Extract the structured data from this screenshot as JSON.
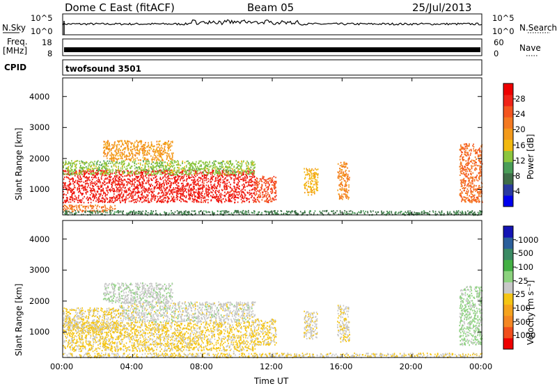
{
  "header": {
    "station": "Dome C East (fitACF)",
    "beam": "Beam 05",
    "date": "25/Jul/2013"
  },
  "strips": {
    "nsky": {
      "label": "N.Sky",
      "top_tick": "10^5",
      "bottom_tick": "10^0"
    },
    "nsearch": {
      "label": "N.Search",
      "top_tick": "10^5",
      "bottom_tick": "10^0"
    },
    "freq": {
      "label_line1": "Freq.",
      "label_line2": "[MHz]",
      "top_tick": "18",
      "bottom_tick": "8"
    },
    "nave": {
      "label": "Nave",
      "top_tick": "60",
      "bottom_tick": "0"
    },
    "cpid": {
      "label": "CPID",
      "value": "twofsound 3501"
    }
  },
  "colors": {
    "power_scale": [
      "#0000ee",
      "#2a3aa0",
      "#3f6e48",
      "#4a9d58",
      "#8cc63e",
      "#f2b90f",
      "#f39a1b",
      "#f47a22",
      "#f4551f",
      "#f02418",
      "#ee0000"
    ],
    "velocity_scale": [
      "#ee0000",
      "#f14f1c",
      "#f48723",
      "#f5a31e",
      "#f5c515",
      "#c8c8c8",
      "#8cd27e",
      "#44b044",
      "#3a8a63",
      "#2b5f9b",
      "#1414b4"
    ]
  },
  "chart_data": [
    {
      "type": "heatmap",
      "panel": "power",
      "ylabel": "Slant Range [km]",
      "xlabel": "",
      "xlim": [
        0,
        24
      ],
      "ylim": [
        180,
        4600
      ],
      "x_ticks": [
        "00:00",
        "04:00",
        "08:00",
        "12:00",
        "16:00",
        "20:00",
        "00:00"
      ],
      "y_ticks": [
        1000,
        2000,
        3000,
        4000
      ],
      "colorbar": {
        "label": "Power [dB]",
        "ticks": [
          4,
          8,
          12,
          16,
          20,
          24,
          28
        ],
        "range": [
          0,
          32
        ]
      },
      "regions": [
        {
          "t0": 0.0,
          "t1": 11.0,
          "r0": 600,
          "r1": 1650,
          "v": 28
        },
        {
          "t0": 0.0,
          "t1": 11.0,
          "r0": 1500,
          "r1": 1950,
          "v": 13
        },
        {
          "t0": 2.3,
          "t1": 6.3,
          "r0": 1950,
          "r1": 2600,
          "v": 19
        },
        {
          "t0": 0.0,
          "t1": 3.0,
          "r0": 300,
          "r1": 520,
          "v": 22
        },
        {
          "t0": 11.0,
          "t1": 12.2,
          "r0": 600,
          "r1": 1450,
          "v": 25
        },
        {
          "t0": 13.8,
          "t1": 14.6,
          "r0": 800,
          "r1": 1700,
          "v": 17
        },
        {
          "t0": 15.7,
          "t1": 16.4,
          "r0": 700,
          "r1": 1900,
          "v": 21
        },
        {
          "t0": 22.7,
          "t1": 24.0,
          "r0": 600,
          "r1": 2500,
          "v": 23
        },
        {
          "t0": 0.0,
          "t1": 24.0,
          "r0": 200,
          "r1": 340,
          "v": 8
        }
      ]
    },
    {
      "type": "heatmap",
      "panel": "velocity",
      "ylabel": "Slant Range [km]",
      "xlabel": "Time UT",
      "xlim": [
        0,
        24
      ],
      "ylim": [
        180,
        4600
      ],
      "x_ticks": [
        "00:00",
        "04:00",
        "08:00",
        "12:00",
        "16:00",
        "20:00",
        "00:00"
      ],
      "y_ticks": [
        1000,
        2000,
        3000,
        4000
      ],
      "colorbar": {
        "label": "Velocity [m s⁻¹]",
        "ticks": [
          "1000",
          "500",
          "100",
          "25",
          "-25",
          "-100",
          "-500",
          "-1000"
        ],
        "range": [
          -1200,
          1200
        ]
      },
      "regions": [
        {
          "t0": 0.0,
          "t1": 11.0,
          "r0": 400,
          "r1": 1350,
          "v": -160
        },
        {
          "t0": 3.2,
          "t1": 11.0,
          "r0": 1350,
          "r1": 2000,
          "v": 0
        },
        {
          "t0": 0.0,
          "t1": 3.2,
          "r0": 1000,
          "r1": 1800,
          "v": -120
        },
        {
          "t0": 2.3,
          "t1": 6.3,
          "r0": 1950,
          "r1": 2600,
          "v": 40
        },
        {
          "t0": 11.0,
          "t1": 12.2,
          "r0": 600,
          "r1": 1450,
          "v": -150
        },
        {
          "t0": 13.8,
          "t1": 14.6,
          "r0": 800,
          "r1": 1700,
          "v": -60
        },
        {
          "t0": 15.7,
          "t1": 16.4,
          "r0": 700,
          "r1": 1900,
          "v": -80
        },
        {
          "t0": 22.7,
          "t1": 24.0,
          "r0": 600,
          "r1": 2500,
          "v": 150
        },
        {
          "t0": 0.0,
          "t1": 24.0,
          "r0": 200,
          "r1": 340,
          "v": -120
        }
      ]
    }
  ]
}
